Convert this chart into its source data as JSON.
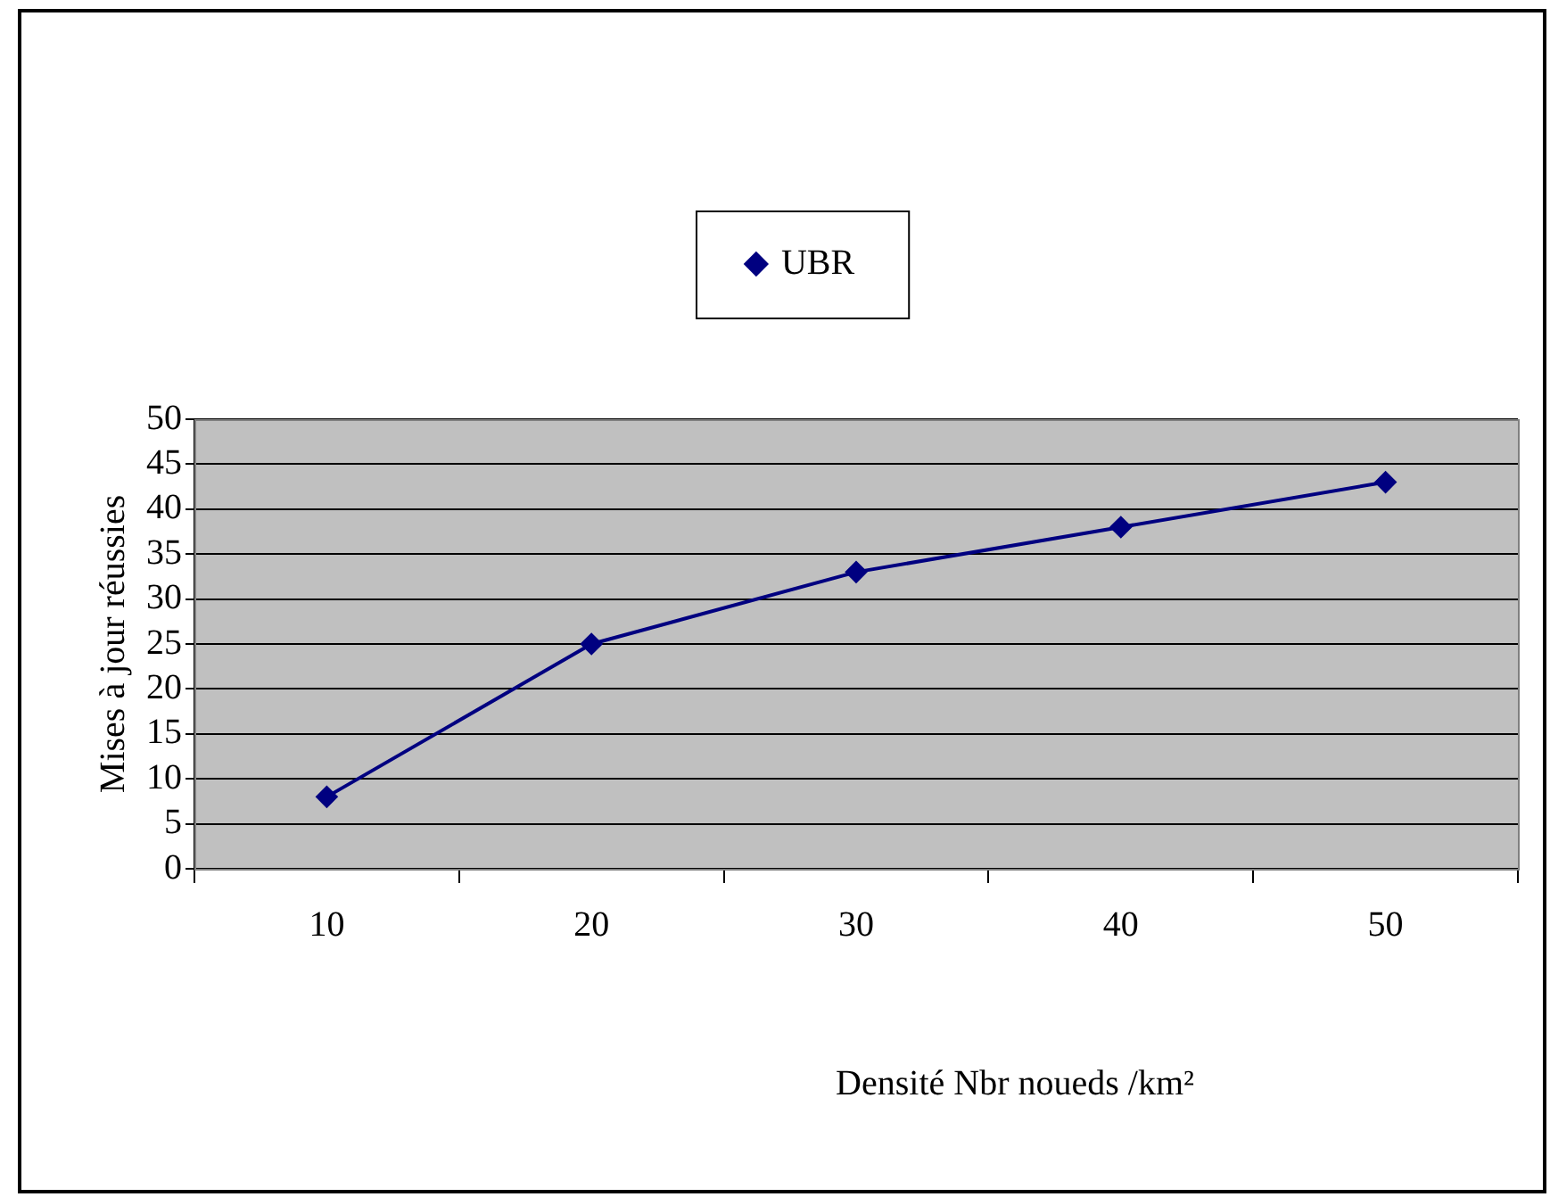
{
  "chart_data": {
    "type": "line",
    "xlabel": "Densité Nbr noueds /km²",
    "ylabel": "Mises à jour réussies",
    "categories": [
      "10",
      "20",
      "30",
      "40",
      "50"
    ],
    "series": [
      {
        "name": "UBR",
        "color": "#000080",
        "values": [
          8,
          25,
          33,
          38,
          43
        ]
      }
    ],
    "ylim": [
      0,
      50
    ],
    "yticks": [
      0,
      5,
      10,
      15,
      20,
      25,
      30,
      35,
      40,
      45,
      50
    ],
    "grid": "y",
    "legend": "top",
    "marker": "diamond",
    "line_style": "solid"
  }
}
